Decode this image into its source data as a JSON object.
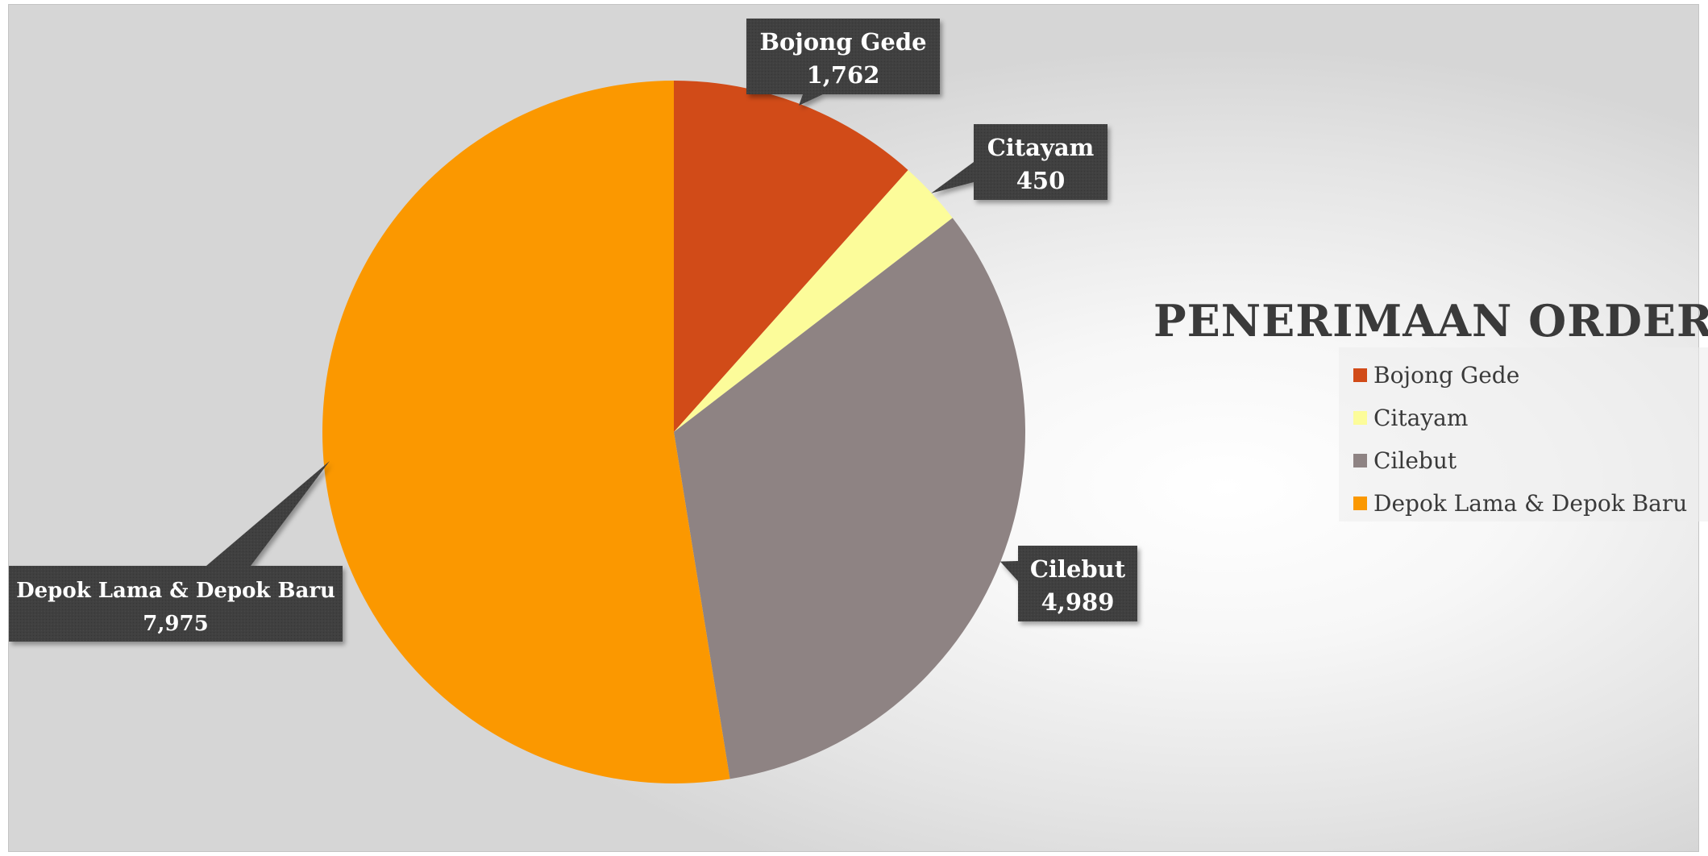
{
  "chart_data": {
    "type": "pie",
    "title": "PENERIMAAN ORDER",
    "categories": [
      "Bojong Gede",
      "Citayam",
      "Cilebut",
      "Depok Lama & Depok Baru"
    ],
    "values": [
      1762,
      450,
      4989,
      7975
    ],
    "value_labels": [
      "1,762",
      "450",
      "4,989",
      "7,975"
    ],
    "colors": [
      "#D14B18",
      "#FCFC9A",
      "#8E8383",
      "#FB9800"
    ],
    "start_angle_deg": 0,
    "direction": "clockwise",
    "legend_position": "right",
    "data_labels": "callouts"
  },
  "colors": {
    "callout_fill": "#404040",
    "title_color": "#3a3a3a"
  }
}
